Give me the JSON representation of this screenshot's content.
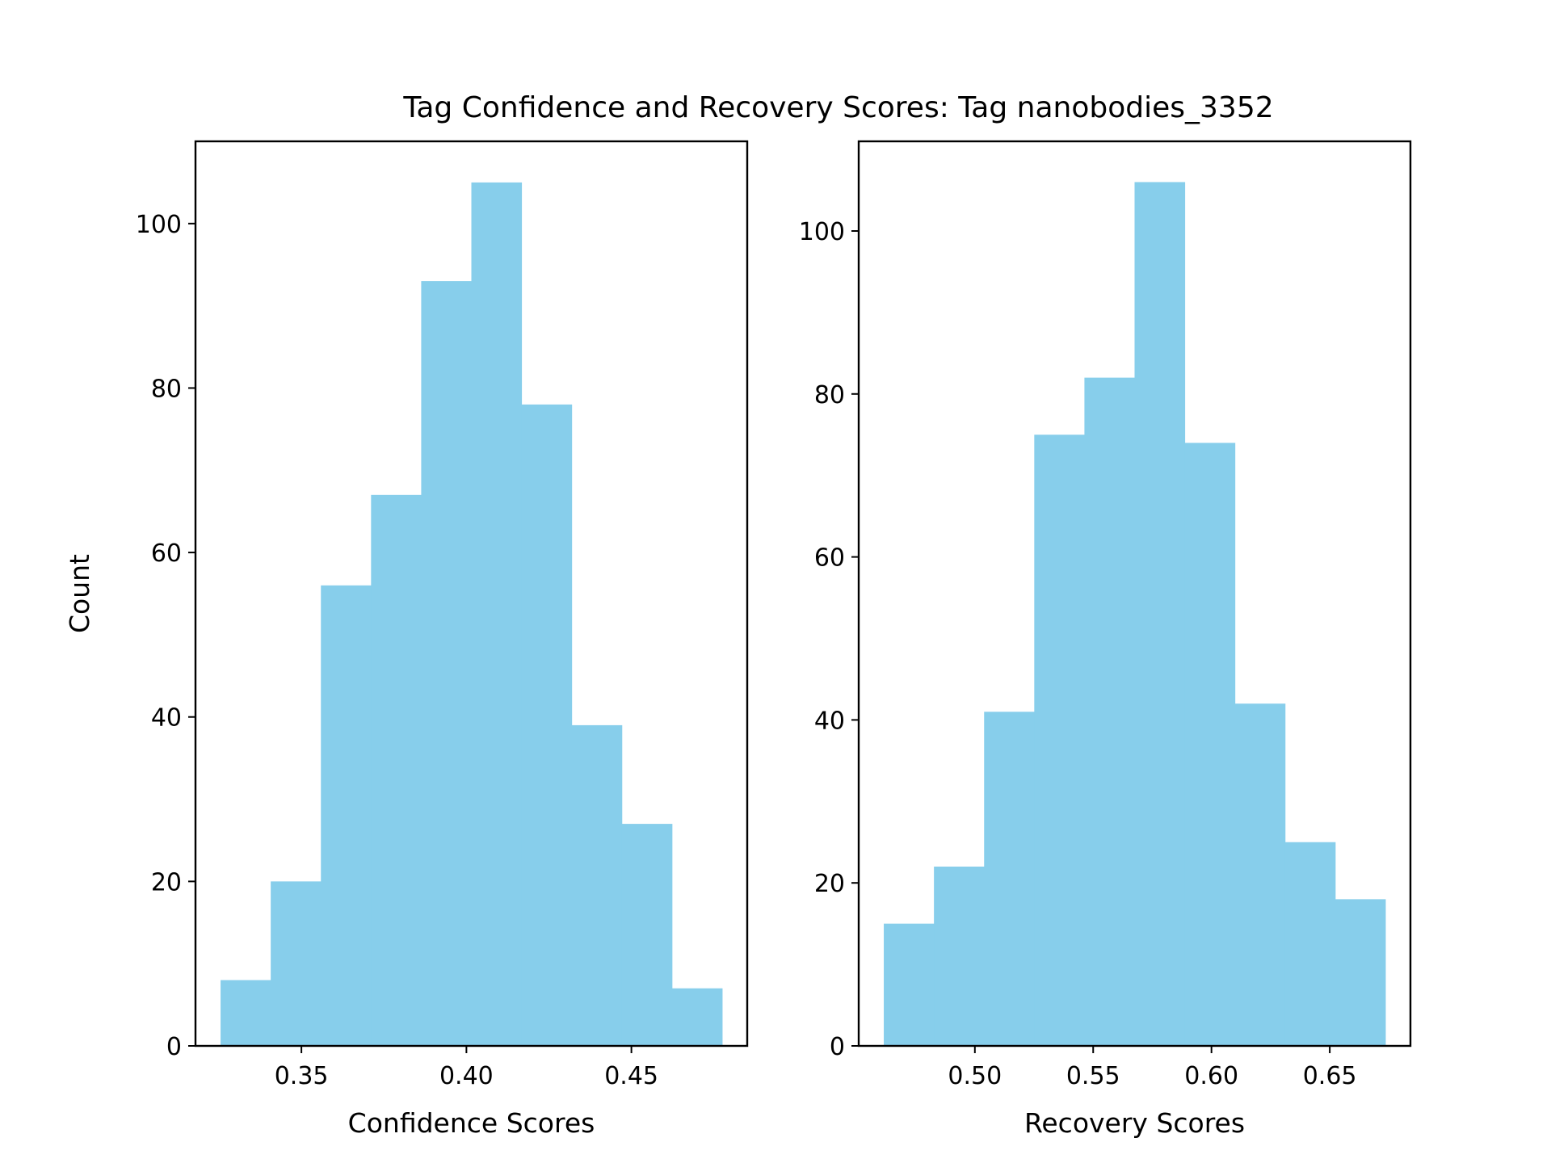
{
  "figure": {
    "title": "Tag Confidence and Recovery Scores: Tag nanobodies_3352"
  },
  "colors": {
    "bar": "#87ceeb",
    "axes": "#000000",
    "background": "#ffffff"
  },
  "chart_data": [
    {
      "type": "bar",
      "title": "",
      "xlabel": "Confidence Scores",
      "ylabel": "Count",
      "bin_edges": [
        0.3255,
        0.3407,
        0.3559,
        0.3711,
        0.3863,
        0.4015,
        0.4167,
        0.4319,
        0.4471,
        0.4623,
        0.4775
      ],
      "values": [
        8,
        20,
        56,
        67,
        93,
        105,
        78,
        39,
        27,
        7
      ],
      "xlim": [
        0.3179,
        0.4851
      ],
      "ylim": [
        0,
        110
      ],
      "xticks": [
        0.35,
        0.4,
        0.45
      ],
      "xtick_labels": [
        "0.35",
        "0.40",
        "0.45"
      ],
      "yticks": [
        0,
        20,
        40,
        60,
        80,
        100
      ],
      "ytick_labels": [
        "0",
        "20",
        "40",
        "60",
        "80",
        "100"
      ],
      "grid": false
    },
    {
      "type": "bar",
      "title": "",
      "xlabel": "Recovery Scores",
      "ylabel": "",
      "bin_edges": [
        0.4615,
        0.4827,
        0.5039,
        0.5251,
        0.5463,
        0.5675,
        0.5887,
        0.6099,
        0.6311,
        0.6523,
        0.6735
      ],
      "values": [
        15,
        22,
        41,
        75,
        82,
        106,
        74,
        42,
        25,
        18
      ],
      "xlim": [
        0.4509,
        0.6841
      ],
      "ylim": [
        0,
        111
      ],
      "xticks": [
        0.5,
        0.55,
        0.6,
        0.65
      ],
      "xtick_labels": [
        "0.50",
        "0.55",
        "0.60",
        "0.65"
      ],
      "yticks": [
        0,
        20,
        40,
        60,
        80,
        100
      ],
      "ytick_labels": [
        "0",
        "20",
        "40",
        "60",
        "80",
        "100"
      ],
      "grid": false
    }
  ]
}
